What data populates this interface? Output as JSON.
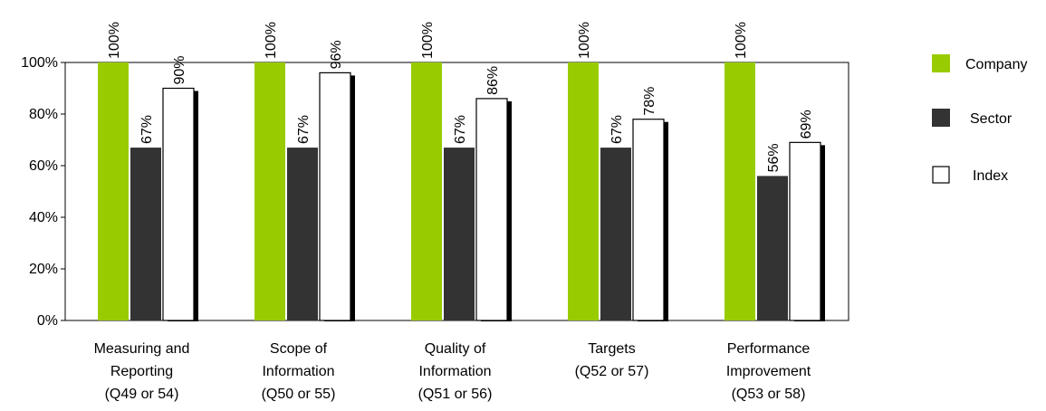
{
  "chart_data": {
    "type": "bar",
    "categories": [
      [
        "Measuring and",
        "Reporting",
        "(Q49 or 54)"
      ],
      [
        "Scope of",
        "Information",
        "(Q50 or 55)"
      ],
      [
        "Quality of",
        "Information",
        "(Q51 or 56)"
      ],
      [
        "Targets",
        "(Q52 or 57)"
      ],
      [
        "Performance",
        "Improvement",
        "(Q53 or 58)"
      ]
    ],
    "series": [
      {
        "name": "Company",
        "color": "#99cc00",
        "values": [
          100,
          100,
          100,
          100,
          100
        ],
        "labels": [
          "100%",
          "100%",
          "100%",
          "100%",
          "100%"
        ]
      },
      {
        "name": "Sector",
        "color": "#333333",
        "values": [
          67,
          67,
          67,
          67,
          56
        ],
        "labels": [
          "67%",
          "67%",
          "67%",
          "67%",
          "56%"
        ]
      },
      {
        "name": "Index",
        "color": "#ffffff",
        "values": [
          90,
          96,
          86,
          78,
          69
        ],
        "labels": [
          "90%",
          "96%",
          "86%",
          "78%",
          "69%"
        ]
      }
    ],
    "y_ticks": [
      0,
      20,
      40,
      60,
      80,
      100
    ],
    "y_tick_labels": [
      "0%",
      "20%",
      "40%",
      "60%",
      "80%",
      "100%"
    ],
    "ylim": [
      0,
      100
    ],
    "grid": false,
    "legend_position": "right"
  }
}
